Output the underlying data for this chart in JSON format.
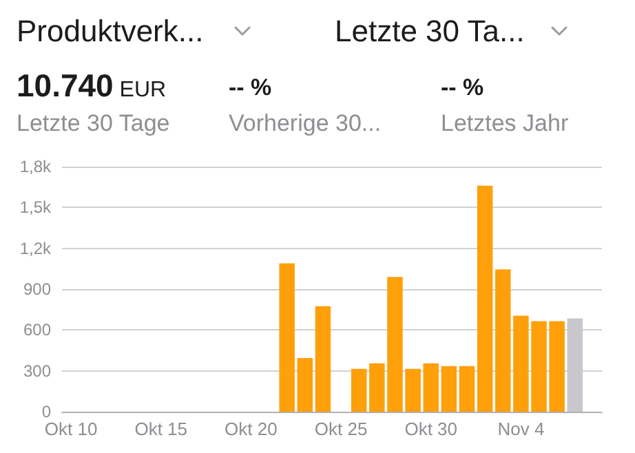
{
  "chart_data": {
    "type": "bar",
    "title": "Produktverk...",
    "annotations": [
      "Letzte 30 Ta...",
      "10.740 EUR",
      "Letzte 30 Tage",
      "-- %",
      "Vorherige 30...",
      "-- %",
      "Letztes Jahr"
    ],
    "categories": [
      "Okt 10",
      null,
      null,
      null,
      null,
      "Okt 15",
      null,
      null,
      null,
      null,
      "Okt 20",
      null,
      null,
      null,
      null,
      "Okt 25",
      null,
      null,
      null,
      null,
      "Okt 30",
      null,
      null,
      null,
      null,
      "Nov 4",
      null,
      null,
      null,
      null
    ],
    "values": [
      0,
      0,
      0,
      0,
      0,
      0,
      0,
      0,
      0,
      0,
      0,
      0,
      1090,
      395,
      775,
      0,
      315,
      355,
      990,
      315,
      355,
      335,
      335,
      1660,
      1045,
      705,
      665,
      665,
      685,
      null
    ],
    "colors": [
      "#ff9f0a",
      "#ff9f0a",
      "#ff9f0a",
      "#ff9f0a",
      "#ff9f0a",
      "#ff9f0a",
      "#ff9f0a",
      "#ff9f0a",
      "#ff9f0a",
      "#ff9f0a",
      "#ff9f0a",
      "#ff9f0a",
      "#ff9f0a",
      "#ff9f0a",
      "#ff9f0a",
      "#ff9f0a",
      "#ff9f0a",
      "#ff9f0a",
      "#ff9f0a",
      "#ff9f0a",
      "#ff9f0a",
      "#ff9f0a",
      "#ff9f0a",
      "#ff9f0a",
      "#ff9f0a",
      "#ff9f0a",
      "#ff9f0a",
      "#ff9f0a",
      "#c7c7cc",
      "#c7c7cc"
    ],
    "ylim": [
      0,
      1800
    ],
    "yticks": [
      0,
      300,
      600,
      900,
      {
        "value": 1200,
        "label": "1,2k"
      },
      {
        "value": 1500,
        "label": "1,5k"
      },
      {
        "value": 1800,
        "label": "1,8k"
      }
    ],
    "grid": "y"
  }
}
